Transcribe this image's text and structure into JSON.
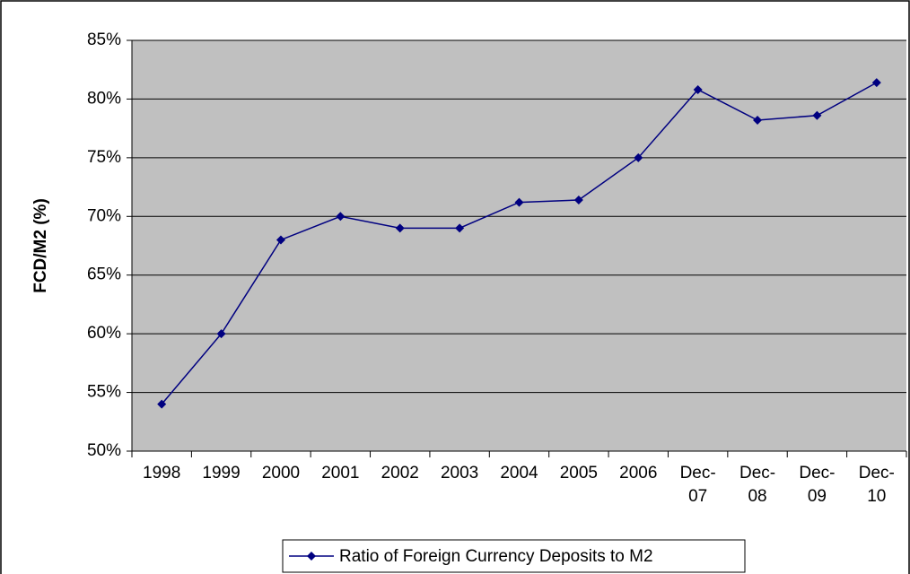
{
  "chart_data": {
    "type": "line",
    "y_label": "FCD/M2 (%)",
    "categories": [
      "1998",
      "1999",
      "2000",
      "2001",
      "2002",
      "2003",
      "2004",
      "2005",
      "2006",
      "Dec-07",
      "Dec-08",
      "Dec-09",
      "Dec-10"
    ],
    "series": [
      {
        "name": "Ratio of Foreign Currency Deposits to M2",
        "color": "#000080",
        "values": [
          54,
          60,
          68,
          70,
          69,
          69,
          71.2,
          71.4,
          75,
          80.8,
          78.2,
          78.6,
          81.4
        ]
      }
    ],
    "ylim": [
      50,
      85
    ],
    "yticks": [
      {
        "value": 50,
        "label": "50%"
      },
      {
        "value": 55,
        "label": "55%"
      },
      {
        "value": 60,
        "label": "60%"
      },
      {
        "value": 65,
        "label": "65%"
      },
      {
        "value": 70,
        "label": "70%"
      },
      {
        "value": 75,
        "label": "75%"
      },
      {
        "value": 80,
        "label": "80%"
      },
      {
        "value": 85,
        "label": "85%"
      }
    ],
    "grid": true,
    "plot_background": "#c0c0c0",
    "legend": "bottom"
  }
}
